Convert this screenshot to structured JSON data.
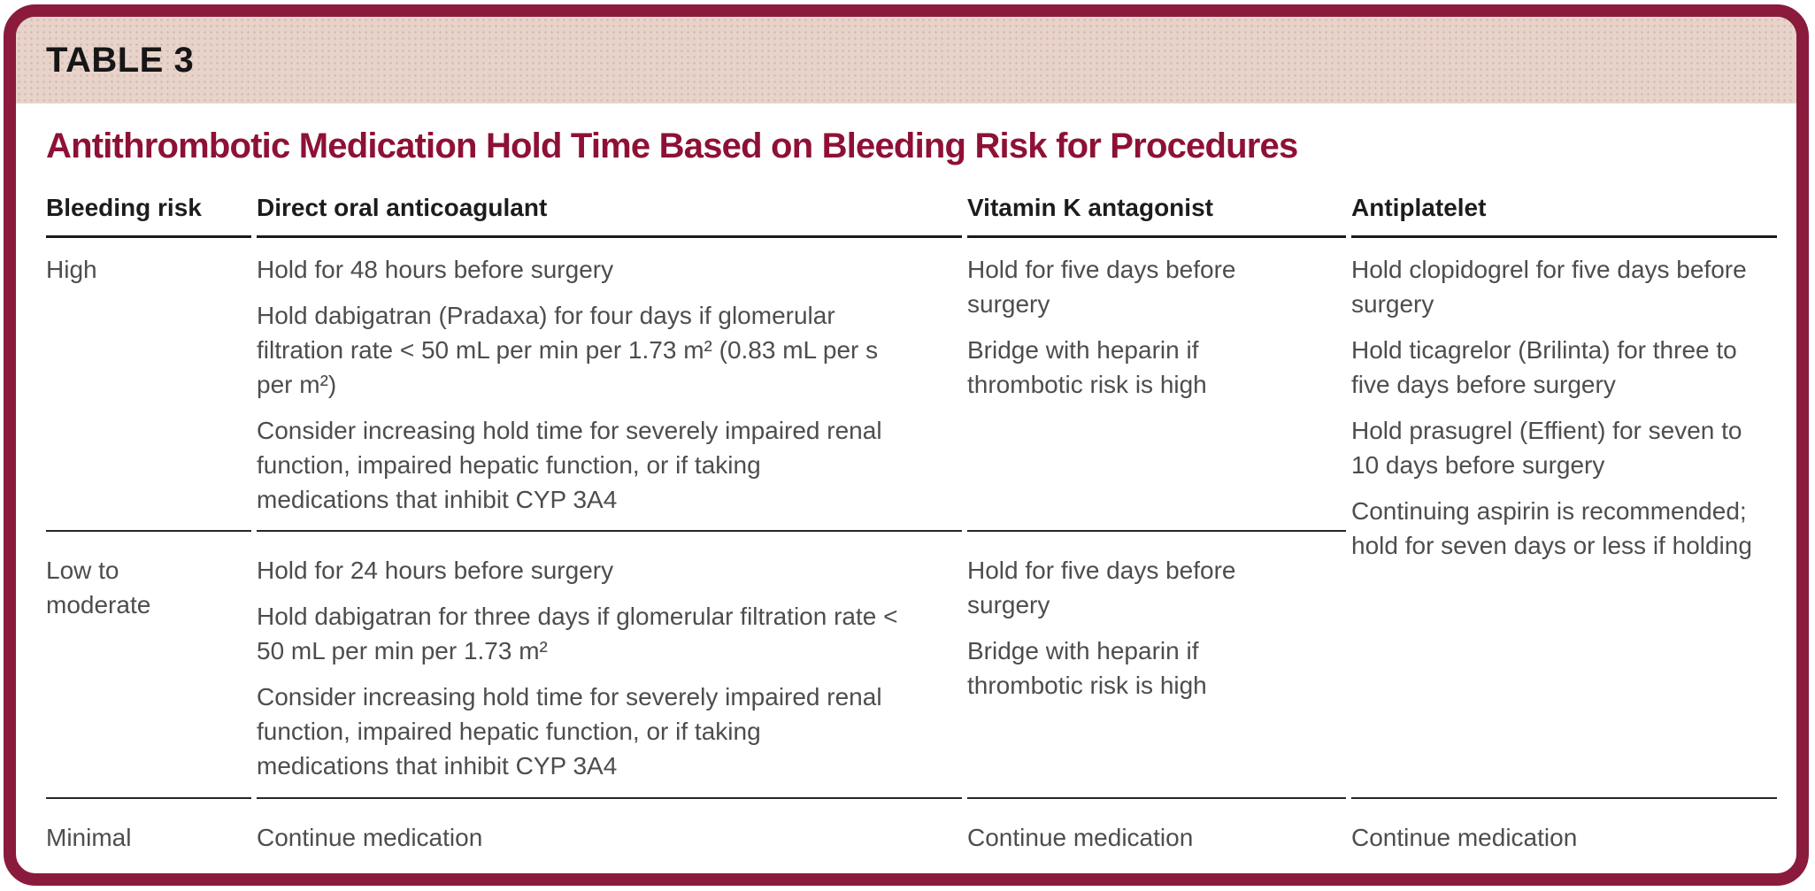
{
  "colors": {
    "accent_maroon_border": "#8a1b3c",
    "title_maroon": "#8e1135",
    "band_pink": "#e8d3cb",
    "heading_text": "#1c1c1c",
    "body_text": "#4d4d4d",
    "rule_black": "#1a1a1a"
  },
  "table_label": "TABLE 3",
  "title": "Antithrombotic Medication Hold Time Based on Bleeding Risk for Procedures",
  "columns": [
    "Bleeding risk",
    "Direct oral anticoagulant",
    "Vitamin K antagonist",
    "Antiplatelet"
  ],
  "rows": {
    "high": {
      "risk": "High",
      "doac": [
        "Hold for 48 hours before surgery",
        "Hold dabigatran (Pradaxa) for four days if glomer­ular filtration rate < 50 mL per min per 1.73 m² (0.83 mL per s per m²)",
        "Consider increasing hold time for severely impaired renal function, impaired hepatic function, or if taking medications that inhibit CYP 3A4"
      ],
      "vka": [
        "Hold for five days before surgery",
        "Bridge with heparin if thrombotic risk is high"
      ],
      "antiplatelet": [
        "Hold clopidogrel for five days before surgery",
        "Hold ticagrelor (Brilinta) for three to five days before surgery",
        "Hold prasugrel (Effient) for seven to 10 days before surgery",
        "Continuing aspirin is recom­mended; hold for seven days or less if holding"
      ]
    },
    "low_moderate": {
      "risk": "Low to moderate",
      "doac": [
        "Hold for 24 hours before surgery",
        "Hold dabigatran for three days if glomerular filtra­tion rate < 50 mL per min per 1.73 m²",
        "Consider increasing hold time for severely impaired renal function, impaired hepatic function, or if taking medications that inhibit CYP 3A4"
      ],
      "vka": [
        "Hold for five days before surgery",
        "Bridge with heparin if thrombotic risk is high"
      ]
    },
    "minimal": {
      "risk": "Minimal",
      "doac": [
        "Continue medication"
      ],
      "vka": [
        "Continue medication"
      ],
      "antiplatelet": [
        "Continue medication"
      ]
    }
  }
}
